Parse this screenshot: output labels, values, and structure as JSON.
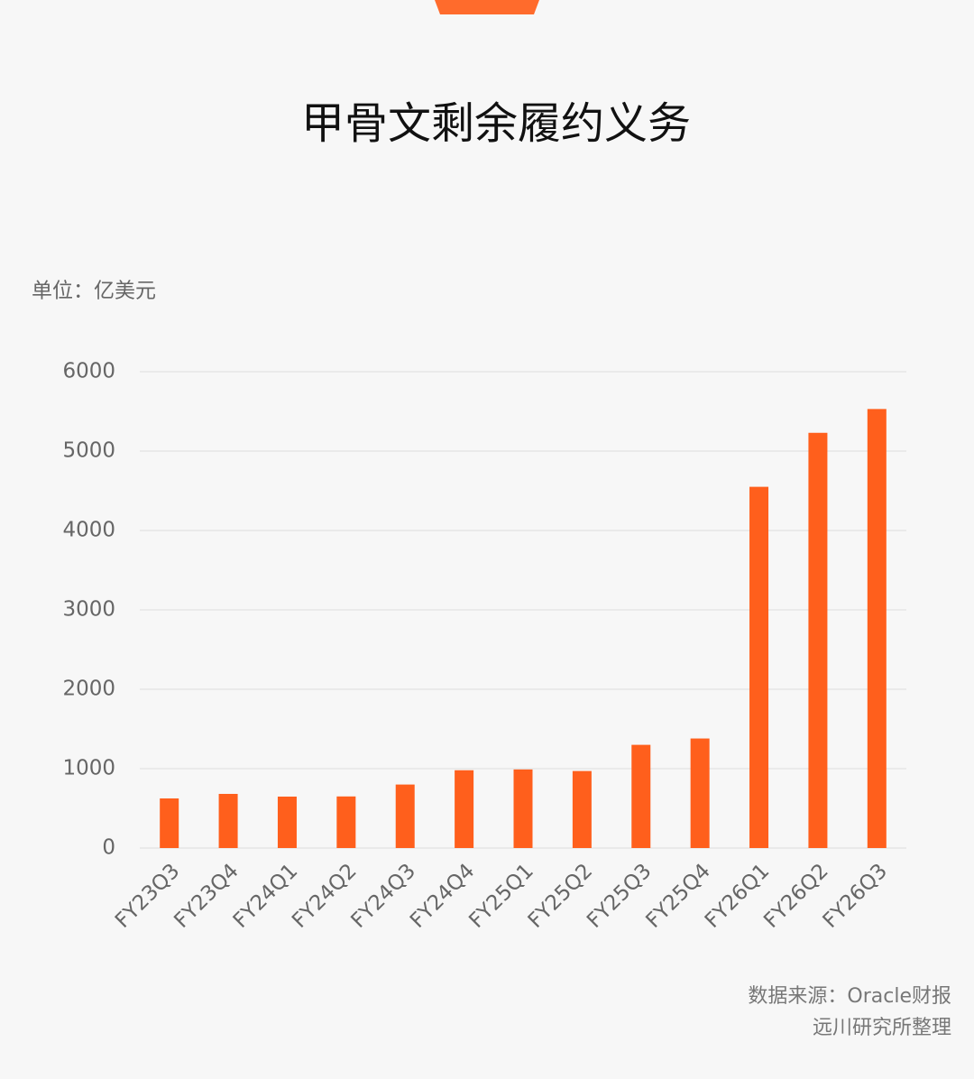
{
  "chart_data": {
    "type": "bar",
    "title": "甲骨文剩余履约义务",
    "unit_label": "单位：亿美元",
    "categories": [
      "FY23Q3",
      "FY23Q4",
      "FY24Q1",
      "FY24Q2",
      "FY24Q3",
      "FY24Q4",
      "FY25Q1",
      "FY25Q2",
      "FY25Q3",
      "FY25Q4",
      "FY26Q1",
      "FY26Q2",
      "FY26Q3"
    ],
    "values": [
      625,
      682,
      648,
      650,
      800,
      980,
      990,
      970,
      1300,
      1380,
      4550,
      5230,
      5530
    ],
    "color": "#ff5f1c",
    "ylim": [
      0,
      6000
    ],
    "yticks": [
      0,
      1000,
      2000,
      3000,
      4000,
      5000,
      6000
    ],
    "grid": true,
    "source": [
      "数据来源：Oracle财报",
      "远川研究所整理"
    ]
  }
}
